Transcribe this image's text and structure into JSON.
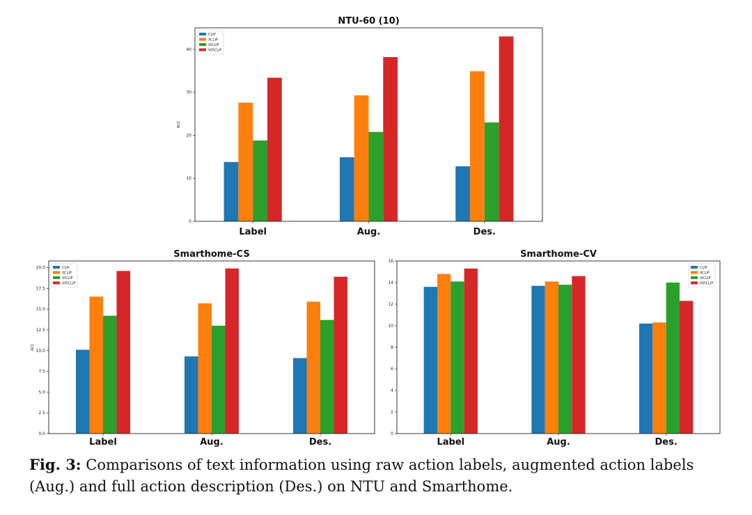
{
  "chart_data": [
    {
      "type": "bar",
      "title": "NTU-60 (10)",
      "ylabel": "ACC",
      "xlabel": "",
      "categories": [
        "Label",
        "Aug.",
        "Des."
      ],
      "ylim": [
        0,
        45
      ],
      "yticks": [
        "0",
        "10",
        "20",
        "30",
        "40"
      ],
      "legend": "top-left",
      "series": [
        {
          "name": "CLIP",
          "color": "#1f77b4",
          "values": [
            13.8,
            14.9,
            12.8
          ]
        },
        {
          "name": "XCLIP",
          "color": "#ff7f0e",
          "values": [
            27.6,
            29.3,
            34.9
          ]
        },
        {
          "name": "ViCLIP",
          "color": "#2ca02c",
          "values": [
            18.8,
            20.8,
            23.0
          ]
        },
        {
          "name": "ViFiCLIP",
          "color": "#d62728",
          "values": [
            33.4,
            38.2,
            43.0
          ]
        }
      ]
    },
    {
      "type": "bar",
      "title": "Smarthome-CS",
      "ylabel": "ACC",
      "xlabel": "",
      "categories": [
        "Label",
        "Aug.",
        "Des."
      ],
      "ylim": [
        0,
        20.8
      ],
      "yticks": [
        "0.0",
        "2.5",
        "5.0",
        "7.5",
        "10.0",
        "12.5",
        "15.0",
        "17.5",
        "20.0"
      ],
      "legend": "top-left",
      "series": [
        {
          "name": "CLIP",
          "color": "#1f77b4",
          "values": [
            10.1,
            9.3,
            9.1
          ]
        },
        {
          "name": "XCLIP",
          "color": "#ff7f0e",
          "values": [
            16.5,
            15.7,
            15.9
          ]
        },
        {
          "name": "ViCLIP",
          "color": "#2ca02c",
          "values": [
            14.2,
            13.0,
            13.7
          ]
        },
        {
          "name": "ViFiCLIP",
          "color": "#d62728",
          "values": [
            19.6,
            19.9,
            18.9
          ]
        }
      ]
    },
    {
      "type": "bar",
      "title": "Smarthome-CV",
      "ylabel": "",
      "xlabel": "",
      "categories": [
        "Label",
        "Aug.",
        "Des."
      ],
      "ylim": [
        0,
        16
      ],
      "yticks": [
        "0",
        "2",
        "4",
        "6",
        "8",
        "10",
        "12",
        "14",
        "16"
      ],
      "legend": "top-right",
      "series": [
        {
          "name": "CLIP",
          "color": "#1f77b4",
          "values": [
            13.6,
            13.7,
            10.2
          ]
        },
        {
          "name": "XCLIP",
          "color": "#ff7f0e",
          "values": [
            14.8,
            14.1,
            10.3
          ]
        },
        {
          "name": "ViCLIP",
          "color": "#2ca02c",
          "values": [
            14.1,
            13.8,
            14.0
          ]
        },
        {
          "name": "ViFiCLIP",
          "color": "#d62728",
          "values": [
            15.3,
            14.6,
            12.3
          ]
        }
      ]
    }
  ],
  "caption": {
    "label": "Fig. 3:",
    "text": "Comparisons of text information using raw action labels, augmented action labels (Aug.) and full action description (Des.) on NTU and Smarthome."
  }
}
